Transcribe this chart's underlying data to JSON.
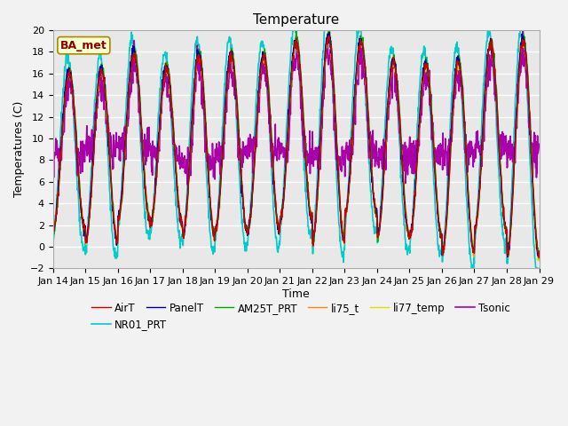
{
  "title": "Temperature",
  "ylabel": "Temperatures (C)",
  "xlabel": "Time",
  "ylim": [
    -2,
    20
  ],
  "x_tick_labels": [
    "Jan 14",
    "Jan 15",
    "Jan 16",
    "Jan 17",
    "Jan 18",
    "Jan 19",
    "Jan 20",
    "Jan 21",
    "Jan 22",
    "Jan 23",
    "Jan 24",
    "Jan 25",
    "Jan 26",
    "Jan 27",
    "Jan 28",
    "Jan 29"
  ],
  "legend_label": "BA_met",
  "series": [
    {
      "name": "AirT",
      "color": "#cc0000",
      "lw": 1.0
    },
    {
      "name": "PanelT",
      "color": "#000099",
      "lw": 1.0
    },
    {
      "name": "AM25T_PRT",
      "color": "#00aa00",
      "lw": 1.0
    },
    {
      "name": "li75_t",
      "color": "#ff8800",
      "lw": 1.0
    },
    {
      "name": "li77_temp",
      "color": "#dddd00",
      "lw": 1.0
    },
    {
      "name": "Tsonic",
      "color": "#aa00aa",
      "lw": 1.2
    },
    {
      "name": "NR01_PRT",
      "color": "#00cccc",
      "lw": 1.2
    }
  ],
  "bg_color": "#e8e8e8",
  "grid_color": "#ffffff",
  "title_fontsize": 11,
  "axis_label_fontsize": 9,
  "tick_fontsize": 8,
  "legend_box_facecolor": "#ffffcc",
  "legend_box_edgecolor": "#aa8800",
  "legend_box_text_color": "#880000"
}
